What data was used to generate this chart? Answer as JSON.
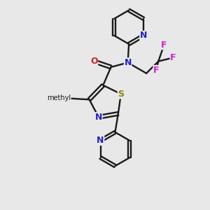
{
  "bg": "#e8e8e8",
  "bond_color": "#1a1a1a",
  "N_color": "#2222cc",
  "O_color": "#cc2222",
  "S_color": "#888800",
  "F_color": "#cc22cc",
  "lw": 1.7,
  "figsize": [
    3.0,
    3.0
  ],
  "dpi": 100,
  "xlim": [
    0,
    10
  ],
  "ylim": [
    0,
    10
  ]
}
